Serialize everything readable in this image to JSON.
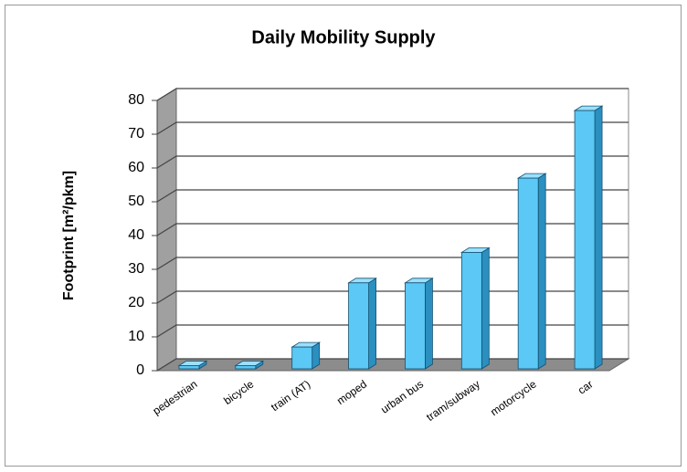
{
  "chart_data": {
    "type": "bar",
    "title": "Daily Mobility Supply",
    "y_label": "Footprint [m²/pkm]",
    "categories": [
      "pedestrian",
      "bicycle",
      "train (AT)",
      "moped",
      "urban bus",
      "tram/subway",
      "motorcycle",
      "car"
    ],
    "values": [
      1.5,
      1.5,
      7,
      26,
      26,
      35,
      57,
      77
    ],
    "color": "#5bc8f5",
    "ylim": [
      0,
      80
    ],
    "yticks": [
      0,
      10,
      20,
      30,
      40,
      50,
      60,
      70,
      80
    ],
    "grid": true
  }
}
